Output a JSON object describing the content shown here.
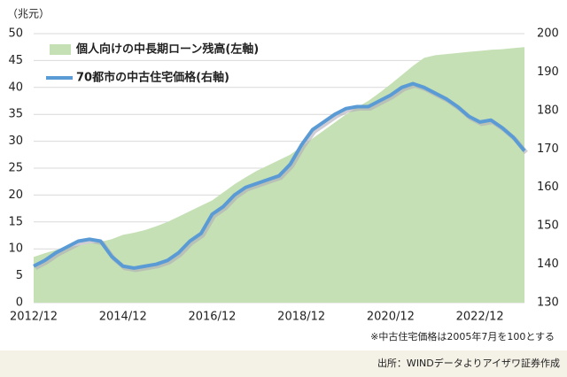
{
  "chart_data": {
    "type": "area_line",
    "ylabel": "（兆元）",
    "categories": [
      "2012/12",
      null,
      null,
      null,
      null,
      null,
      null,
      null,
      "2014/12",
      null,
      null,
      null,
      null,
      null,
      null,
      null,
      "2016/12",
      null,
      null,
      null,
      null,
      null,
      null,
      null,
      "2018/12",
      null,
      null,
      null,
      null,
      null,
      null,
      null,
      "2020/12",
      null,
      null,
      null,
      null,
      null,
      null,
      null,
      "2022/12",
      null,
      null,
      null,
      null
    ],
    "series": [
      {
        "name": "個人向けの中長期ローン残高(左軸)",
        "kind": "area",
        "color": "#c5e0b4",
        "values": [
          8.5,
          9.2,
          9.8,
          10.3,
          10.6,
          11,
          11.3,
          11.8,
          12.6,
          13,
          13.5,
          14.2,
          15,
          16,
          17,
          18,
          19,
          20.5,
          22,
          23.3,
          24.5,
          25.5,
          26.5,
          27.5,
          29,
          30.5,
          32,
          33.5,
          35,
          36.3,
          37.5,
          39,
          40.6,
          42.3,
          44,
          45.5,
          46,
          46.2,
          46.4,
          46.6,
          46.8,
          47,
          47.1,
          47.3,
          47.5
        ]
      },
      {
        "name": "70都市の中古住宅価格(右軸)",
        "kind": "line",
        "axis": "y2",
        "color": "#5b9bd5",
        "values": [
          139.5,
          141,
          143,
          144.5,
          146,
          146.5,
          146,
          142,
          139.5,
          139,
          139.5,
          140,
          141,
          143,
          146,
          148,
          153,
          155,
          158,
          160,
          161,
          162,
          163,
          166,
          171,
          175,
          177,
          179,
          180.5,
          181,
          181,
          182.5,
          184,
          186,
          187,
          186,
          184.5,
          183,
          181,
          178.5,
          177,
          177.5,
          175.5,
          173,
          169.5
        ]
      }
    ],
    "ylim": [
      0,
      50
    ],
    "yticks": [
      0,
      5,
      10,
      15,
      20,
      25,
      30,
      35,
      40,
      45,
      50
    ],
    "y2lim": [
      130,
      200
    ],
    "y2ticks": [
      130,
      140,
      150,
      160,
      170,
      180,
      190,
      200
    ],
    "grid": true,
    "note": "※中古住宅価格は2005年7月を100とする",
    "source": "出所：WINDデータよりアイザワ証券作成"
  }
}
